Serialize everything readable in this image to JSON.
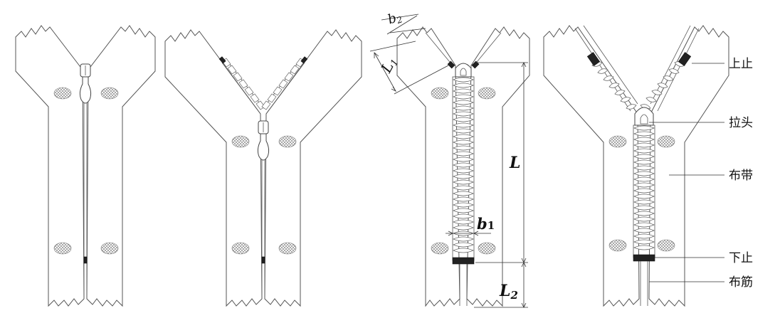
{
  "diagram": {
    "part_labels": {
      "top_stop": "上止",
      "slider": "拉头",
      "tape": "布带",
      "bottom_stop": "下止",
      "tape_cord": "布筋"
    },
    "dimension_labels": {
      "L": "L",
      "L1": "L",
      "L1_sub": "1",
      "L2": "L",
      "L2_sub": "2",
      "b1": "b",
      "b1_sub": "1",
      "b2": "b",
      "b2_sub": "2"
    },
    "colors": {
      "line": "#555555",
      "stopper": "#222222",
      "background": "#ffffff"
    }
  }
}
